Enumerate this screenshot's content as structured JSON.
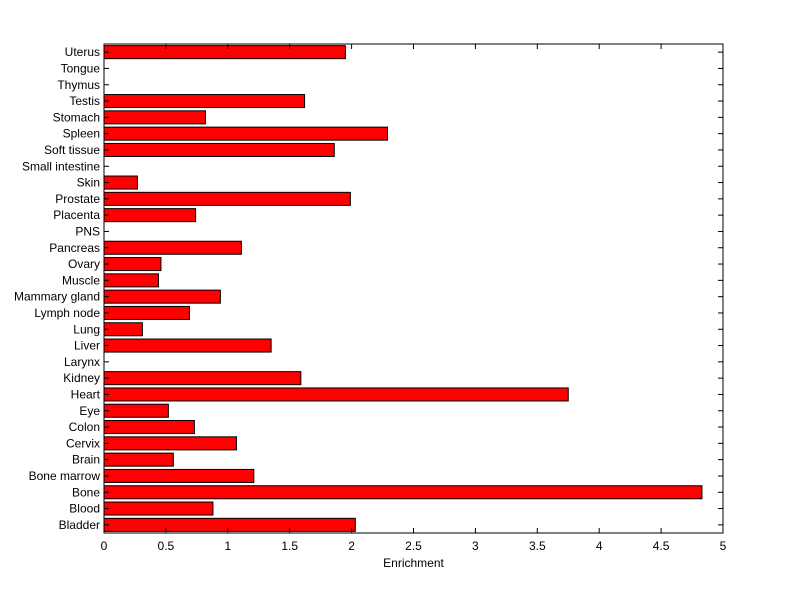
{
  "chart_data": {
    "type": "bar",
    "orientation": "horizontal",
    "title": "",
    "xlabel": "Enrichment",
    "ylabel": "",
    "xlim": [
      0,
      5
    ],
    "xticks": [
      "0",
      "0.5",
      "1",
      "1.5",
      "2",
      "2.5",
      "3",
      "3.5",
      "4",
      "4.5",
      "5"
    ],
    "grid": false,
    "bar_color": "#ff0000",
    "categories": [
      "Bladder",
      "Blood",
      "Bone",
      "Bone marrow",
      "Brain",
      "Cervix",
      "Colon",
      "Eye",
      "Heart",
      "Kidney",
      "Larynx",
      "Liver",
      "Lung",
      "Lymph node",
      "Mammary gland",
      "Muscle",
      "Ovary",
      "Pancreas",
      "PNS",
      "Placenta",
      "Prostate",
      "Skin",
      "Small intestine",
      "Soft tissue",
      "Spleen",
      "Stomach",
      "Testis",
      "Thymus",
      "Tongue",
      "Uterus"
    ],
    "values": [
      2.03,
      0.88,
      4.83,
      1.21,
      0.56,
      1.07,
      0.73,
      0.52,
      3.75,
      1.59,
      0,
      1.35,
      0.31,
      0.69,
      0.94,
      0.44,
      0.46,
      1.11,
      0,
      0.74,
      1.99,
      0.27,
      0,
      1.86,
      2.29,
      0.82,
      1.62,
      0,
      0,
      1.95
    ]
  }
}
